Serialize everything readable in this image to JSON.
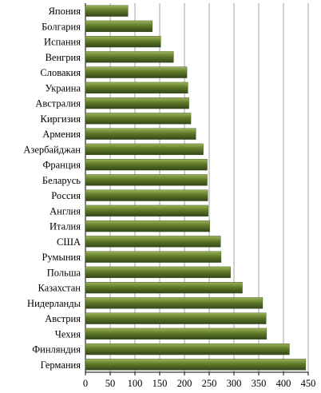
{
  "chart_data": {
    "type": "bar",
    "orientation": "horizontal",
    "title": "",
    "xlabel": "",
    "ylabel": "",
    "xlim": [
      0,
      450
    ],
    "x_ticks": [
      "0",
      "50",
      "100",
      "150",
      "200",
      "250",
      "300",
      "350",
      "400",
      "450"
    ],
    "grid": true,
    "legend": "none",
    "bar_color": "#556b22",
    "categories": [
      "Япония",
      "Болгария",
      "Испания",
      "Венгрия",
      "Словакия",
      "Украина",
      "Австралия",
      "Киргизия",
      "Армения",
      "Азербайджан",
      "Франция",
      "Беларусь",
      "Россия",
      "Англия",
      "Италия",
      "США",
      "Румыния",
      "Польша",
      "Казахстан",
      "Нидерланды",
      "Австрия",
      "Чехия",
      "Финляндия",
      "Германия"
    ],
    "values": [
      86,
      135,
      152,
      178,
      205,
      207,
      209,
      213,
      223,
      238,
      246,
      246,
      247,
      248,
      251,
      273,
      274,
      293,
      317,
      358,
      365,
      366,
      412,
      445
    ]
  }
}
